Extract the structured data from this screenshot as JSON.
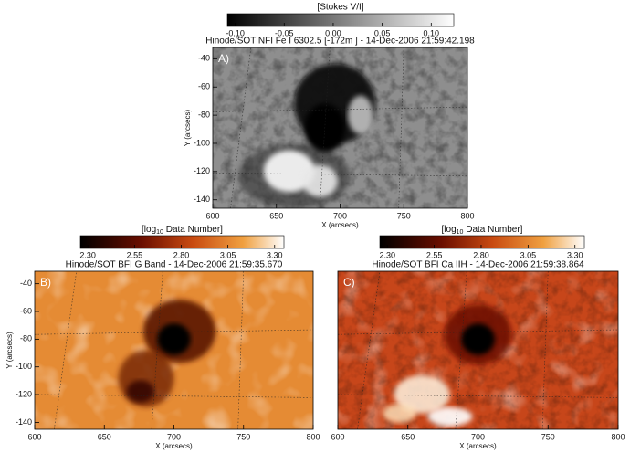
{
  "panels": [
    {
      "letter": "A)",
      "title": "Hinode/SOT NFI Fe I 6302.5 [-172m   ] - 14-Dec-2006 21:59:42.198",
      "colorbar": {
        "label": "[Stokes V/I]",
        "lim": [
          -0.108,
          0.123
        ],
        "ticks": [
          {
            "value": -0.1,
            "label": "-0.10"
          },
          -0.05,
          {
            "value": 0,
            "label": "0.00"
          },
          0.05,
          {
            "value": 0.1,
            "label": "0.10"
          }
        ]
      },
      "xlabel": "X (arcsecs)",
      "ylabel": "Y (arcsecs)",
      "xlim": [
        600,
        800
      ],
      "xticks": [
        600,
        650,
        700,
        750,
        800
      ],
      "ylim": [
        -146,
        -32
      ],
      "yticks": [
        -40,
        -60,
        -80,
        -100,
        -120,
        -140
      ]
    },
    {
      "letter": "B)",
      "title": "Hinode/SOT BFI G Band - 14-Dec-2006 21:59:35.670",
      "colorbar": {
        "label": {
          "prefix": "[log",
          "sub": "10",
          "suffix": " Data Number]"
        },
        "lim": [
          2.26,
          3.35
        ],
        "ticks": [
          {
            "value": 2.3,
            "label": "2.30"
          },
          2.55,
          {
            "value": 2.8,
            "label": "2.80"
          },
          3.05,
          {
            "value": 3.3,
            "label": "3.30"
          }
        ]
      },
      "xlabel": "X (arcsecs)",
      "ylabel": "Y (arcsecs)",
      "xlim": [
        600,
        800
      ],
      "xticks": [
        600,
        650,
        700,
        750,
        800
      ],
      "ylim": [
        -145,
        -31
      ],
      "yticks": [
        -40,
        -60,
        -80,
        -100,
        -120,
        -140
      ]
    },
    {
      "letter": "C)",
      "title": "Hinode/SOT BFI Ca IIH - 14-Dec-2006 21:59:38.864",
      "colorbar": {
        "label": {
          "prefix": "[log",
          "sub": "10",
          "suffix": " Data Number]"
        },
        "lim": [
          2.26,
          3.35
        ],
        "ticks": [
          {
            "value": 2.3,
            "label": "2.30"
          },
          2.55,
          {
            "value": 2.8,
            "label": "2.80"
          },
          3.05,
          {
            "value": 3.3,
            "label": "3.30"
          }
        ]
      },
      "xlabel": "X (arcsecs)",
      "xlim": [
        600,
        800
      ],
      "xticks": [
        600,
        650,
        700,
        750,
        800
      ]
    }
  ]
}
